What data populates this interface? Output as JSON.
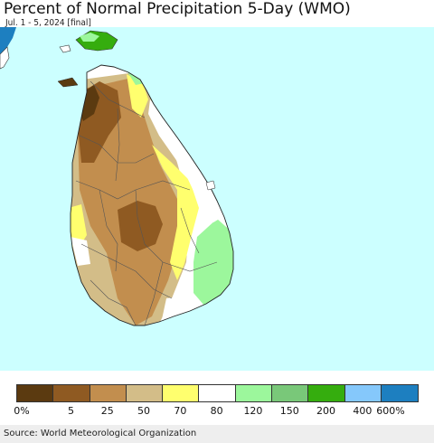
{
  "header": {
    "title": "Percent of Normal Precipitation 5-Day (WMO)",
    "subtitle": "Jul. 1 - 5, 2024 [final]"
  },
  "legend": {
    "items": [
      {
        "color": "#5b3a10"
      },
      {
        "color": "#8f5a22"
      },
      {
        "color": "#c28e4e"
      },
      {
        "color": "#d3bd88"
      },
      {
        "color": "#ffff6e"
      },
      {
        "color": "#ffffff"
      },
      {
        "color": "#9cf79c"
      },
      {
        "color": "#79c879"
      },
      {
        "color": "#35ad0e"
      },
      {
        "color": "#85c8fb"
      },
      {
        "color": "#1d7fc0"
      }
    ],
    "labels": [
      "0%",
      "5",
      "25",
      "50",
      "70",
      "80",
      "120",
      "150",
      "200",
      "400",
      "600%"
    ]
  },
  "map": {
    "ocean_color": "#ccffff",
    "region": "Sri Lanka"
  },
  "footer": {
    "source": "Source: World Meteorological Organization"
  }
}
